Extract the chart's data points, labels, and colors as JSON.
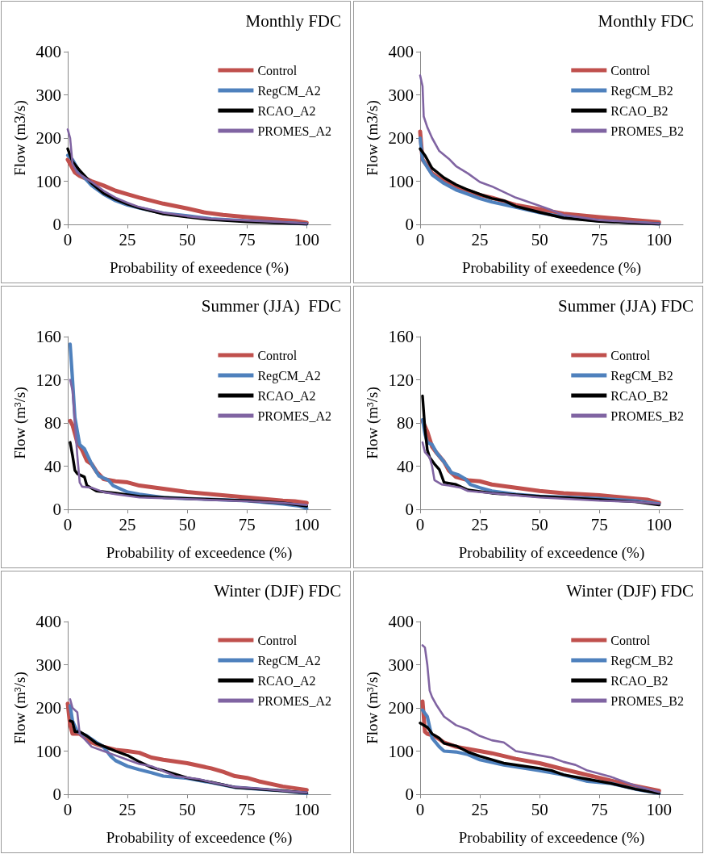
{
  "chart_data": [
    {
      "type": "line",
      "title": "Monthly FDC",
      "xlabel": "Probability of exeedence (%)",
      "ylabel": "Flow (m3/s)",
      "xlim": [
        0,
        110
      ],
      "xticks": [
        0,
        25,
        50,
        75,
        100
      ],
      "ylim": [
        0,
        400
      ],
      "yticks": [
        0,
        100,
        200,
        300,
        400
      ],
      "legend": "top right",
      "series": [
        {
          "name": "Control",
          "color": "#c0504d",
          "x": [
            0,
            1,
            3,
            5,
            10,
            15,
            20,
            25,
            30,
            40,
            50,
            57,
            65,
            75,
            85,
            95,
            100
          ],
          "values": [
            150,
            140,
            120,
            112,
            100,
            90,
            78,
            70,
            62,
            48,
            37,
            28,
            22,
            17,
            12,
            8,
            4
          ]
        },
        {
          "name": "RegCM_A2",
          "color": "#4f81bd",
          "x": [
            0,
            2,
            5,
            10,
            15,
            20,
            25,
            30,
            40,
            50,
            60,
            75,
            90,
            100
          ],
          "values": [
            160,
            150,
            120,
            90,
            70,
            55,
            45,
            38,
            26,
            20,
            13,
            8,
            4,
            1
          ]
        },
        {
          "name": "RCAO_A2",
          "color": "#000000",
          "x": [
            0,
            2,
            5,
            10,
            15,
            20,
            25,
            30,
            40,
            50,
            60,
            75,
            90,
            100
          ],
          "values": [
            175,
            145,
            125,
            95,
            72,
            58,
            47,
            38,
            24,
            17,
            11,
            6,
            3,
            1
          ]
        },
        {
          "name": "PROMES_A2",
          "color": "#8064a2",
          "x": [
            0,
            1,
            2,
            4,
            10,
            15,
            20,
            25,
            30,
            40,
            50,
            60,
            75,
            90,
            100
          ],
          "values": [
            220,
            200,
            140,
            120,
            98,
            78,
            62,
            50,
            40,
            27,
            19,
            13,
            9,
            5,
            2
          ]
        }
      ]
    },
    {
      "type": "line",
      "title": "Monthly FDC",
      "xlabel": "Probability of exeedence (%)",
      "ylabel": "Flow (m3/s)",
      "xlim": [
        0,
        110
      ],
      "xticks": [
        0,
        25,
        50,
        75,
        100
      ],
      "ylim": [
        0,
        400
      ],
      "yticks": [
        0,
        100,
        200,
        300,
        400
      ],
      "legend": "top right",
      "series": [
        {
          "name": "Control",
          "color": "#c0504d",
          "x": [
            0,
            1,
            3,
            5,
            10,
            15,
            20,
            25,
            30,
            40,
            50,
            60,
            75,
            90,
            100
          ],
          "values": [
            215,
            150,
            135,
            118,
            100,
            88,
            78,
            68,
            62,
            45,
            35,
            25,
            17,
            10,
            5
          ]
        },
        {
          "name": "RegCM_B2",
          "color": "#4f81bd",
          "x": [
            0,
            1,
            5,
            10,
            15,
            20,
            25,
            30,
            40,
            50,
            60,
            75,
            90,
            100
          ],
          "values": [
            200,
            150,
            115,
            95,
            80,
            70,
            60,
            52,
            40,
            27,
            17,
            8,
            4,
            1
          ]
        },
        {
          "name": "RCAO_B2",
          "color": "#000000",
          "x": [
            0,
            2,
            5,
            10,
            15,
            20,
            25,
            30,
            35,
            40,
            50,
            60,
            75,
            90,
            100
          ],
          "values": [
            175,
            160,
            130,
            108,
            92,
            80,
            70,
            60,
            55,
            42,
            28,
            15,
            7,
            3,
            1
          ]
        },
        {
          "name": "PROMES_B2",
          "color": "#8064a2",
          "x": [
            0,
            1,
            1.5,
            3,
            5,
            8,
            12,
            15,
            20,
            25,
            30,
            35,
            40,
            50,
            55,
            60,
            75,
            90,
            100
          ],
          "values": [
            345,
            320,
            250,
            225,
            200,
            170,
            152,
            135,
            118,
            98,
            88,
            75,
            62,
            43,
            33,
            22,
            10,
            5,
            2
          ]
        }
      ]
    },
    {
      "type": "line",
      "title": "Summer (JJA)  FDC",
      "xlabel": "Probability of exceedence (%)",
      "ylabel": "Flow (m³/s)",
      "xlim": [
        0,
        110
      ],
      "xticks": [
        0,
        25,
        50,
        75,
        100
      ],
      "ylim": [
        0,
        160
      ],
      "yticks": [
        0,
        40,
        80,
        120,
        160
      ],
      "legend": "top right",
      "series": [
        {
          "name": "Control",
          "color": "#c0504d",
          "x": [
            1,
            2,
            4,
            6,
            8,
            10,
            12,
            15,
            20,
            25,
            30,
            40,
            50,
            60,
            75,
            90,
            95,
            100
          ],
          "values": [
            82,
            78,
            62,
            55,
            45,
            42,
            35,
            28,
            26,
            25,
            22,
            19,
            16,
            14,
            11,
            8,
            7.5,
            6
          ]
        },
        {
          "name": "RegCM_A2",
          "color": "#4f81bd",
          "x": [
            1,
            2,
            3,
            5,
            7,
            10,
            13,
            17,
            19,
            25,
            30,
            40,
            50,
            75,
            90,
            97,
            100
          ],
          "values": [
            153,
            120,
            85,
            60,
            56,
            42,
            31,
            27,
            22,
            16,
            14,
            11,
            10,
            8,
            5,
            3,
            1
          ]
        },
        {
          "name": "RCAO_A2",
          "color": "#000000",
          "x": [
            1,
            2,
            3,
            4,
            7,
            8,
            12,
            20,
            30,
            50,
            75,
            90,
            100
          ],
          "values": [
            62,
            50,
            36,
            33,
            30,
            22,
            17,
            15,
            12,
            10,
            8,
            6,
            3
          ]
        },
        {
          "name": "PROMES_A2",
          "color": "#8064a2",
          "x": [
            1,
            2,
            3,
            4,
            5,
            6,
            10,
            15,
            20,
            30,
            50,
            75,
            90,
            100
          ],
          "values": [
            120,
            110,
            80,
            50,
            25,
            21,
            20,
            16,
            14,
            11,
            9.5,
            7.5,
            6,
            4
          ]
        }
      ]
    },
    {
      "type": "line",
      "title": "Summer (JJA) FDC",
      "xlabel": "Probability of exceedence (%)",
      "ylabel": "Flow (m³/s)",
      "xlim": [
        0,
        110
      ],
      "xticks": [
        0,
        25,
        50,
        75,
        100
      ],
      "ylim": [
        0,
        160
      ],
      "yticks": [
        0,
        40,
        80,
        120,
        160
      ],
      "legend": "top right",
      "series": [
        {
          "name": "Control",
          "color": "#c0504d",
          "x": [
            1,
            3,
            5,
            7,
            10,
            12,
            15,
            20,
            25,
            30,
            40,
            50,
            60,
            75,
            90,
            95,
            100
          ],
          "values": [
            82,
            72,
            58,
            52,
            44,
            36,
            30,
            27,
            26,
            23,
            20,
            17,
            15,
            13,
            10,
            9,
            6
          ]
        },
        {
          "name": "RegCM_B2",
          "color": "#4f81bd",
          "x": [
            1,
            2,
            3,
            5,
            7,
            10,
            12,
            13,
            16,
            19,
            21,
            25,
            30,
            40,
            50,
            75,
            90,
            100
          ],
          "values": [
            83,
            70,
            62,
            60,
            52,
            44,
            38,
            34,
            32,
            28,
            23,
            20,
            17,
            14,
            12,
            10,
            8,
            5
          ]
        },
        {
          "name": "RCAO_B2",
          "color": "#000000",
          "x": [
            1,
            2,
            3,
            4,
            6,
            8,
            10,
            15,
            20,
            30,
            50,
            75,
            90,
            100
          ],
          "values": [
            105,
            75,
            55,
            48,
            42,
            37,
            25,
            23,
            18,
            15,
            12,
            9,
            7,
            4
          ]
        },
        {
          "name": "PROMES_B2",
          "color": "#8064a2",
          "x": [
            1,
            2,
            4,
            5,
            6,
            9,
            12,
            17,
            20,
            30,
            40,
            50,
            75,
            90,
            100
          ],
          "values": [
            62,
            53,
            48,
            40,
            27,
            23,
            22,
            20,
            17,
            15,
            13,
            11,
            8,
            7,
            5
          ]
        }
      ]
    },
    {
      "type": "line",
      "title": "Winter (DJF) FDC",
      "xlabel": "Probability of exceedence (%)",
      "ylabel": "Flow (m³/s)",
      "xlim": [
        0,
        110
      ],
      "xticks": [
        0,
        25,
        50,
        75,
        100
      ],
      "ylim": [
        0,
        400
      ],
      "yticks": [
        0,
        100,
        200,
        300,
        400
      ],
      "legend": "top right",
      "series": [
        {
          "name": "Control",
          "color": "#c0504d",
          "x": [
            0,
            1,
            2,
            5,
            10,
            15,
            20,
            25,
            30,
            35,
            40,
            50,
            60,
            65,
            70,
            75,
            80,
            90,
            100
          ],
          "values": [
            210,
            160,
            140,
            140,
            120,
            110,
            103,
            100,
            96,
            85,
            80,
            72,
            60,
            52,
            42,
            38,
            30,
            18,
            10
          ]
        },
        {
          "name": "RegCM_A2",
          "color": "#4f81bd",
          "x": [
            1,
            2,
            4,
            8,
            12,
            15,
            18,
            20,
            25,
            30,
            35,
            40,
            50,
            60,
            70,
            80,
            90,
            100
          ],
          "values": [
            205,
            170,
            145,
            135,
            120,
            110,
            88,
            78,
            65,
            57,
            50,
            42,
            37,
            27,
            16,
            12,
            8,
            2
          ]
        },
        {
          "name": "RCAO_A2",
          "color": "#000000",
          "x": [
            1,
            2,
            3,
            5,
            8,
            12,
            20,
            25,
            30,
            35,
            40,
            50,
            60,
            70,
            80,
            90,
            100
          ],
          "values": [
            170,
            168,
            145,
            145,
            135,
            118,
            100,
            90,
            75,
            62,
            55,
            38,
            28,
            16,
            12,
            8,
            3
          ]
        },
        {
          "name": "PROMES_A2",
          "color": "#8064a2",
          "x": [
            1,
            2,
            3,
            4,
            5,
            10,
            15,
            20,
            25,
            30,
            35,
            45,
            55,
            60,
            70,
            80,
            90,
            100
          ],
          "values": [
            220,
            200,
            195,
            190,
            140,
            110,
            100,
            90,
            80,
            70,
            65,
            42,
            35,
            28,
            17,
            13,
            8,
            4
          ]
        }
      ]
    },
    {
      "type": "line",
      "title": "Winter (DJF) FDC",
      "xlabel": "Probability of exceedence (%)",
      "ylabel": "Flow (m³/s)",
      "xlim": [
        0,
        110
      ],
      "xticks": [
        0,
        25,
        50,
        75,
        100
      ],
      "ylim": [
        0,
        400
      ],
      "yticks": [
        0,
        100,
        200,
        300,
        400
      ],
      "legend": "top right",
      "series": [
        {
          "name": "Control",
          "color": "#c0504d",
          "x": [
            1,
            2,
            3,
            6,
            10,
            15,
            25,
            30,
            40,
            50,
            60,
            75,
            85,
            100
          ],
          "values": [
            215,
            145,
            140,
            135,
            120,
            110,
            100,
            95,
            82,
            72,
            58,
            38,
            25,
            8
          ]
        },
        {
          "name": "RegCM_B2",
          "color": "#4f81bd",
          "x": [
            1,
            3,
            5,
            8,
            10,
            15,
            20,
            25,
            35,
            50,
            60,
            70,
            80,
            90,
            100
          ],
          "values": [
            195,
            180,
            130,
            110,
            100,
            98,
            92,
            80,
            68,
            55,
            45,
            30,
            25,
            12,
            2
          ]
        },
        {
          "name": "RCAO_B2",
          "color": "#000000",
          "x": [
            0,
            3,
            5,
            8,
            10,
            15,
            20,
            25,
            35,
            50,
            55,
            60,
            70,
            80,
            90,
            100
          ],
          "values": [
            165,
            155,
            140,
            130,
            118,
            112,
            98,
            88,
            72,
            60,
            55,
            45,
            35,
            25,
            12,
            2
          ]
        },
        {
          "name": "PROMES_B2",
          "color": "#8064a2",
          "x": [
            1,
            2,
            3,
            4,
            5,
            7,
            10,
            15,
            20,
            25,
            30,
            35,
            40,
            50,
            55,
            60,
            65,
            70,
            80,
            90,
            100
          ],
          "values": [
            345,
            340,
            300,
            240,
            225,
            205,
            180,
            160,
            150,
            135,
            125,
            120,
            100,
            90,
            85,
            75,
            68,
            55,
            40,
            20,
            5
          ]
        }
      ]
    }
  ]
}
